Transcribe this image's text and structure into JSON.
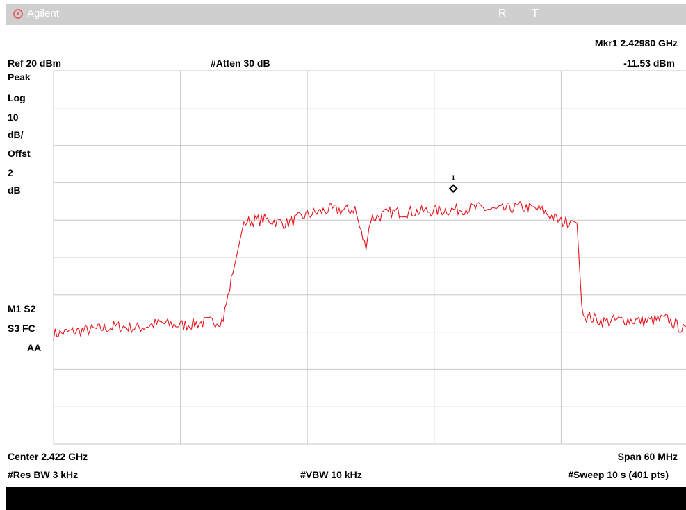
{
  "header": {
    "brand": "Agilent",
    "status_r": "R",
    "status_t": "T",
    "marker_freq": "Mkr1  2.42980 GHz",
    "marker_level": "-11.53 dBm",
    "ref_level": "Ref 20 dBm",
    "attenuation": "#Atten 30 dB"
  },
  "left_panel": {
    "detector": "Peak",
    "scale_type": "Log",
    "scale_value": "10",
    "scale_unit": "dB/",
    "offset_label": "Offst",
    "offset_value": "2",
    "offset_unit": "dB",
    "m1": "M1  S2",
    "s3": "S3  FC",
    "aa": "AA"
  },
  "footer": {
    "center": "Center 2.422 GHz",
    "span": "Span 60 MHz",
    "rbw": "#Res BW 3 kHz",
    "vbw": "#VBW 10 kHz",
    "sweep": "#Sweep 10 s (401 pts)"
  },
  "colors": {
    "trace": "#e8131b",
    "grid": "#c8c8c8",
    "titlebar": "#cfcfcf"
  },
  "chart_data": {
    "type": "line",
    "xlabel": "",
    "ylabel": "",
    "xlim": [
      2.392,
      2.452
    ],
    "ylim": [
      -80,
      20
    ],
    "grid": true,
    "marker": {
      "name": "1",
      "x": 2.4298,
      "y": -11.53
    },
    "series": [
      {
        "x": [
          2.392,
          2.394,
          2.396,
          2.398,
          2.4,
          2.402,
          2.404,
          2.406,
          2.408,
          2.41,
          2.412,
          2.414,
          2.416,
          2.418,
          2.42,
          2.4205,
          2.421,
          2.4215,
          2.422,
          2.424,
          2.426,
          2.428,
          2.43,
          2.432,
          2.434,
          2.436,
          2.438,
          2.44,
          2.441,
          2.4415,
          2.442,
          2.444,
          2.446,
          2.448,
          2.45,
          2.452
        ],
        "y": [
          -50.5,
          -49.8,
          -49.3,
          -48.5,
          -48.9,
          -47.6,
          -48.2,
          -47.5,
          -46.9,
          -20.5,
          -19.8,
          -20.9,
          -18.6,
          -17.2,
          -17.4,
          -16.8,
          -22.5,
          -27.2,
          -19.6,
          -17.9,
          -17.8,
          -17.5,
          -17.2,
          -16.7,
          -17.4,
          -16.5,
          -17.2,
          -20.5,
          -20.1,
          -20.8,
          -45.5,
          -47.2,
          -46.7,
          -47.1,
          -46.5,
          -50.2
        ]
      }
    ]
  }
}
